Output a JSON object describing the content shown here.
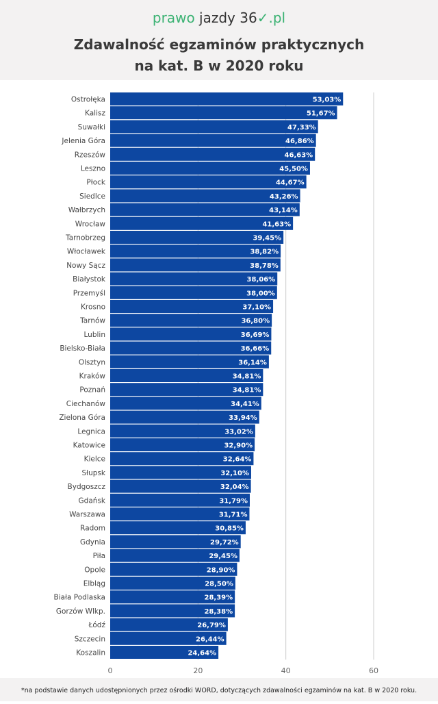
{
  "header": {
    "logo": {
      "part1": "prawo",
      "part2": "jazdy 36",
      "part3": "✓",
      "part4": ".pl"
    },
    "title_line1": "Zdawalność egzaminów praktycznych",
    "title_line2": "na kat. B w 2020 roku"
  },
  "footer": {
    "note": "*na podstawie danych udostępnionych przez ośrodki WORD,  dotyczących zdawalności egzaminów na kat. B w 2020 roku."
  },
  "chart_data": {
    "type": "bar",
    "orientation": "horizontal",
    "bar_color": "#0d47a1",
    "xlim": [
      0,
      60
    ],
    "xticks": [
      0,
      20,
      40,
      60
    ],
    "grid": true,
    "categories": [
      "Ostrołęka",
      "Kalisz",
      "Suwałki",
      "Jelenia Góra",
      "Rzeszów",
      "Leszno",
      "Płock",
      "Siedlce",
      "Wałbrzych",
      "Wrocław",
      "Tarnobrzeg",
      "Włocławek",
      "Nowy Sącz",
      "Białystok",
      "Przemyśl",
      "Krosno",
      "Tarnów",
      "Lublin",
      "Bielsko-Biała",
      "Olsztyn",
      "Kraków",
      "Poznań",
      "Ciechanów",
      "Zielona Góra",
      "Legnica",
      "Katowice",
      "Kielce",
      "Słupsk",
      "Bydgoszcz",
      "Gdańsk",
      "Warszawa",
      "Radom",
      "Gdynia",
      "Piła",
      "Opole",
      "Elbląg",
      "Biała Podlaska",
      "Gorzów Wlkp.",
      "Łódź",
      "Szczecin",
      "Koszalin"
    ],
    "values": [
      53.03,
      51.67,
      47.33,
      46.86,
      46.63,
      45.5,
      44.67,
      43.26,
      43.14,
      41.63,
      39.45,
      38.82,
      38.78,
      38.06,
      38.0,
      37.1,
      36.8,
      36.69,
      36.66,
      36.14,
      34.81,
      34.81,
      34.41,
      33.94,
      33.02,
      32.9,
      32.64,
      32.1,
      32.04,
      31.79,
      31.71,
      30.85,
      29.72,
      29.45,
      28.9,
      28.5,
      28.39,
      28.38,
      26.79,
      26.44,
      24.64
    ],
    "labels": [
      "53,03%",
      "51,67%",
      "47,33%",
      "46,86%",
      "46,63%",
      "45,50%",
      "44,67%",
      "43,26%",
      "43,14%",
      "41,63%",
      "39,45%",
      "38,82%",
      "38,78%",
      "38,06%",
      "38,00%",
      "37,10%",
      "36,80%",
      "36,69%",
      "36,66%",
      "36,14%",
      "34,81%",
      "34,81%",
      "34,41%",
      "33,94%",
      "33,02%",
      "32,90%",
      "32,64%",
      "32,10%",
      "32,04%",
      "31,79%",
      "31,71%",
      "30,85%",
      "29,72%",
      "29,45%",
      "28,90%",
      "28,50%",
      "28,39%",
      "28,38%",
      "26,79%",
      "26,44%",
      "24,64%"
    ]
  }
}
